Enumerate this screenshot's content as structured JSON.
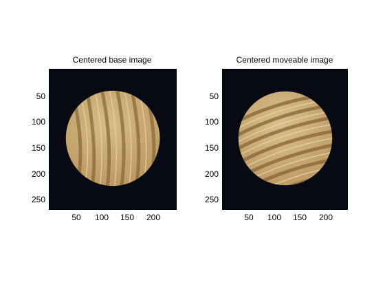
{
  "figure": {
    "panels": [
      {
        "title": "Centered base image",
        "yticks": [
          "50",
          "100",
          "150",
          "200",
          "250"
        ],
        "xticks": [
          "50",
          "100",
          "150",
          "200"
        ],
        "ring_orientation": "rightward-tilted curves",
        "background_color": "#070a12",
        "disc_color": "#c4a46a",
        "ring_color": "#8a6a3a"
      },
      {
        "title": "Centered moveable image",
        "yticks": [
          "50",
          "100",
          "150",
          "200",
          "250"
        ],
        "xticks": [
          "50",
          "100",
          "150",
          "200"
        ],
        "ring_orientation": "rotated curves",
        "background_color": "#070a12",
        "disc_color": "#c7a86f",
        "ring_color": "#866535"
      }
    ]
  }
}
